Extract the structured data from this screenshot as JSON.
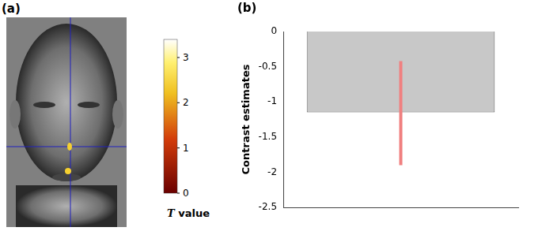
{
  "panel_a": {
    "title": "(a)",
    "colorbar": {
      "title": "T value",
      "range": [
        0,
        3.4
      ],
      "ticks": [
        0,
        1,
        2,
        3
      ]
    }
  },
  "chart_data": {
    "type": "bar",
    "title": "(b)",
    "y_label": "Contrast estimates",
    "categories": [
      null
    ],
    "values": [
      -1.15
    ],
    "error_low": [
      -1.9
    ],
    "error_high": [
      -0.42
    ],
    "color": "#c8c8c8",
    "ylim": [
      -2.5,
      0
    ],
    "yticks": [
      -2.5,
      -2,
      -1.5,
      -1,
      -0.5,
      0
    ],
    "grid": false,
    "tick_labels": "y"
  }
}
